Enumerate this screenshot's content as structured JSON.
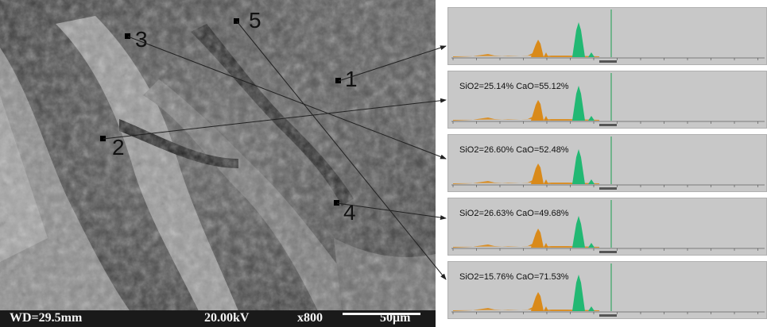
{
  "sem_image": {
    "markers": [
      {
        "label": "1"
      },
      {
        "label": "2"
      },
      {
        "label": "3"
      },
      {
        "label": "4"
      },
      {
        "label": "5"
      }
    ],
    "caption": {
      "wd": "WD=29.5mm",
      "kv": "20.00kV",
      "mag": "x800",
      "scale": "50μm"
    }
  },
  "spectra": [
    {
      "composition": ""
    },
    {
      "composition": "SiO2=25.14%  CaO=55.12%"
    },
    {
      "composition": "SiO2=26.60%  CaO=52.48%"
    },
    {
      "composition": "SiO2=26.63%  CaO=49.68%"
    },
    {
      "composition": "SiO2=15.76%  CaO=71.53%"
    }
  ],
  "colors": {
    "panel_bg": "#c8c8c8",
    "orange_peaks": "#d98a1a",
    "green_peaks": "#22b873",
    "marker_line": "#222222"
  }
}
